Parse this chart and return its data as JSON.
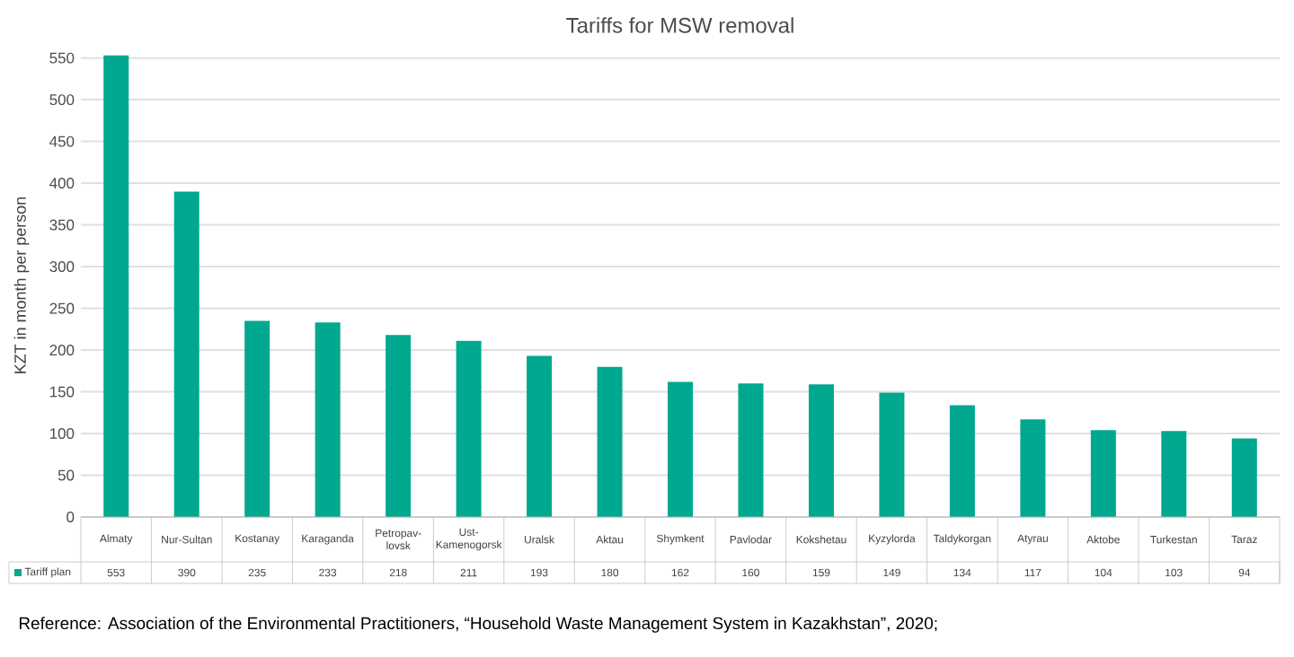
{
  "chart_data": {
    "type": "bar",
    "title": "Tariffs for MSW removal",
    "ylabel": "KZT in month per person",
    "categories": [
      "Almaty",
      "Nur-Sultan",
      "Kostanay",
      "Karaganda",
      "Petropav-lovsk",
      "Ust-Kamenogorsk",
      "Uralsk",
      "Aktau",
      "Shymkent",
      "Pavlodar",
      "Kokshetau",
      "Kyzylorda",
      "Taldykorgan",
      "Atyrau",
      "Aktobe",
      "Turkestan",
      "Taraz"
    ],
    "series": [
      {
        "name": "Tariff plan",
        "color": "#00a88f",
        "values": [
          553,
          390,
          235,
          233,
          218,
          211,
          193,
          180,
          162,
          160,
          159,
          149,
          134,
          117,
          104,
          103,
          94
        ]
      }
    ],
    "ylim": [
      0,
      555
    ],
    "yticks": [
      0,
      50,
      100,
      150,
      200,
      250,
      300,
      350,
      400,
      450,
      500,
      550
    ],
    "grid": "y",
    "legend": "bottom",
    "data_labels": true,
    "annotations": [
      "Reference: Association of the Environmental Practitioners, “Household Waste Management System in Kazakhstan”, 2020;"
    ]
  }
}
